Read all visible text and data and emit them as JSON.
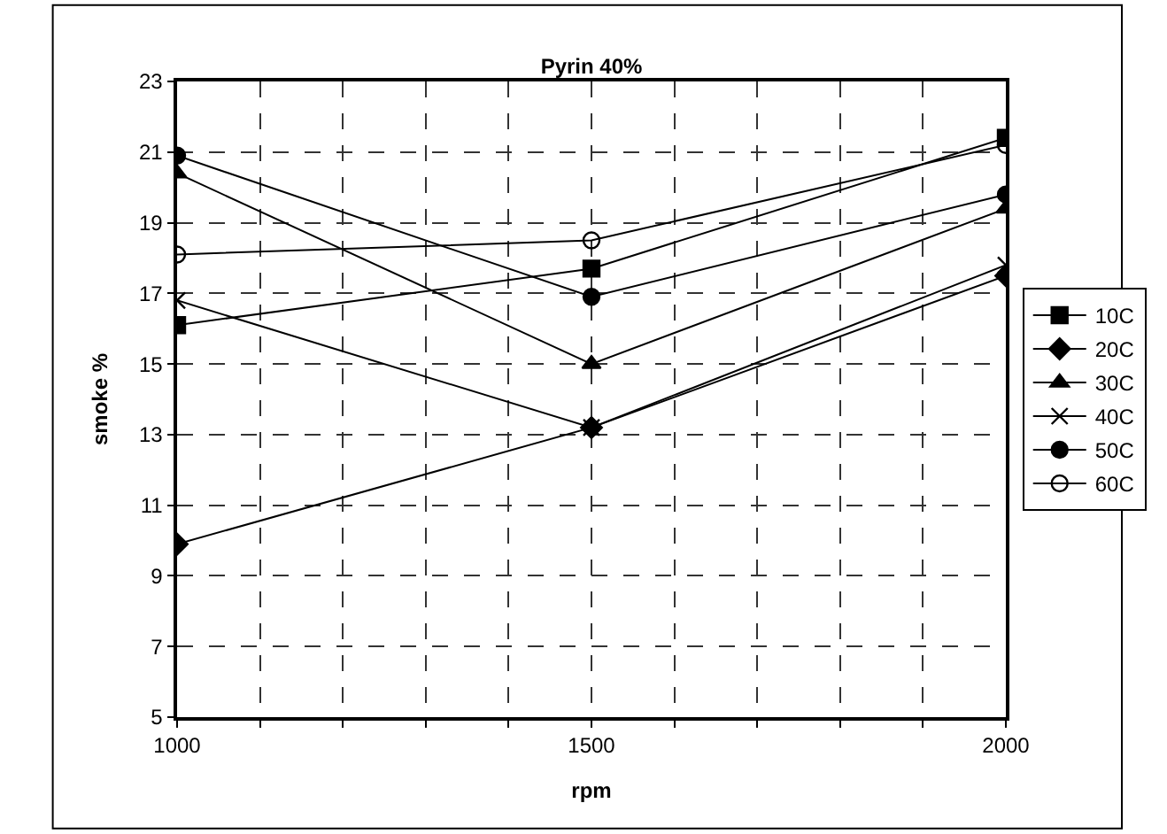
{
  "chart_data": {
    "type": "line",
    "title": "Pyrin 40%",
    "xlabel": "rpm",
    "ylabel": "smoke %",
    "x": [
      1000,
      1500,
      2000
    ],
    "xlim": [
      1000,
      2000
    ],
    "xticks": [
      1000,
      {
        "value": 1100,
        "label": null
      },
      {
        "value": 1200,
        "label": null
      },
      {
        "value": 1300,
        "label": null
      },
      {
        "value": 1400,
        "label": null
      },
      1500,
      {
        "value": 1600,
        "label": null
      },
      {
        "value": 1700,
        "label": null
      },
      {
        "value": 1800,
        "label": null
      },
      {
        "value": 1900,
        "label": null
      },
      2000
    ],
    "ylim": [
      5,
      23
    ],
    "yticks": [
      5,
      7,
      9,
      11,
      13,
      15,
      17,
      19,
      21,
      23
    ],
    "grid": true,
    "legend": "right",
    "series": [
      {
        "name": "10C",
        "color": "#000000",
        "marker": "square",
        "values": [
          16.1,
          17.7,
          21.4
        ]
      },
      {
        "name": "20C",
        "color": "#000000",
        "marker": "diamond",
        "values": [
          9.9,
          13.2,
          17.5
        ]
      },
      {
        "name": "30C",
        "color": "#000000",
        "marker": "triangle",
        "values": [
          20.4,
          15.0,
          19.4
        ]
      },
      {
        "name": "40C",
        "color": "#000000",
        "marker": "cross",
        "values": [
          16.8,
          13.2,
          17.8
        ]
      },
      {
        "name": "50C",
        "color": "#000000",
        "marker": "circle",
        "values": [
          20.9,
          16.9,
          19.8
        ]
      },
      {
        "name": "60C",
        "color": "#000000",
        "marker": "circle-open",
        "values": [
          18.1,
          18.5,
          21.2
        ]
      }
    ]
  }
}
